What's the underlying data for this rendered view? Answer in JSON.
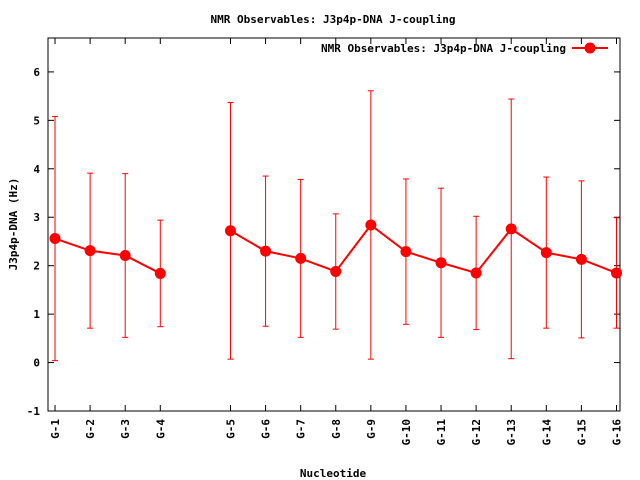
{
  "chart_data": {
    "type": "line",
    "title": "NMR Observables: J3p4p-DNA J-coupling",
    "xlabel": "Nucleotide",
    "ylabel": "J3p4p-DNA (Hz)",
    "ylim": [
      -1,
      6.7
    ],
    "yticks": [
      -1,
      0,
      1,
      2,
      3,
      4,
      5,
      6
    ],
    "xlim": [
      0.8,
      17.1
    ],
    "grid": false,
    "legend_position": "top-right",
    "color": "#ff0000",
    "series": [
      {
        "name": "NMR Observables: J3p4p-DNA J-coupling",
        "segments": [
          {
            "x": [
              1,
              2,
              3,
              4
            ],
            "labels": [
              "G-1",
              "G-2",
              "G-3",
              "G-4"
            ],
            "y": [
              2.56,
              2.31,
              2.21,
              1.84
            ],
            "err": [
              2.52,
              1.6,
              1.69,
              1.1
            ]
          },
          {
            "x": [
              6,
              7,
              8,
              9,
              10,
              11,
              12,
              13,
              14,
              15,
              16,
              17
            ],
            "labels": [
              "G-5",
              "G-6",
              "G-7",
              "G-8",
              "G-9",
              "G-10",
              "G-11",
              "G-12",
              "G-13",
              "G-14",
              "G-15",
              "G-16"
            ],
            "y": [
              2.72,
              2.3,
              2.15,
              1.88,
              2.84,
              2.29,
              2.06,
              1.85,
              2.76,
              2.27,
              2.13,
              1.85
            ],
            "err": [
              2.65,
              1.55,
              1.63,
              1.19,
              2.77,
              1.5,
              1.54,
              1.17,
              2.68,
              1.56,
              1.62,
              1.14
            ]
          }
        ]
      }
    ]
  }
}
